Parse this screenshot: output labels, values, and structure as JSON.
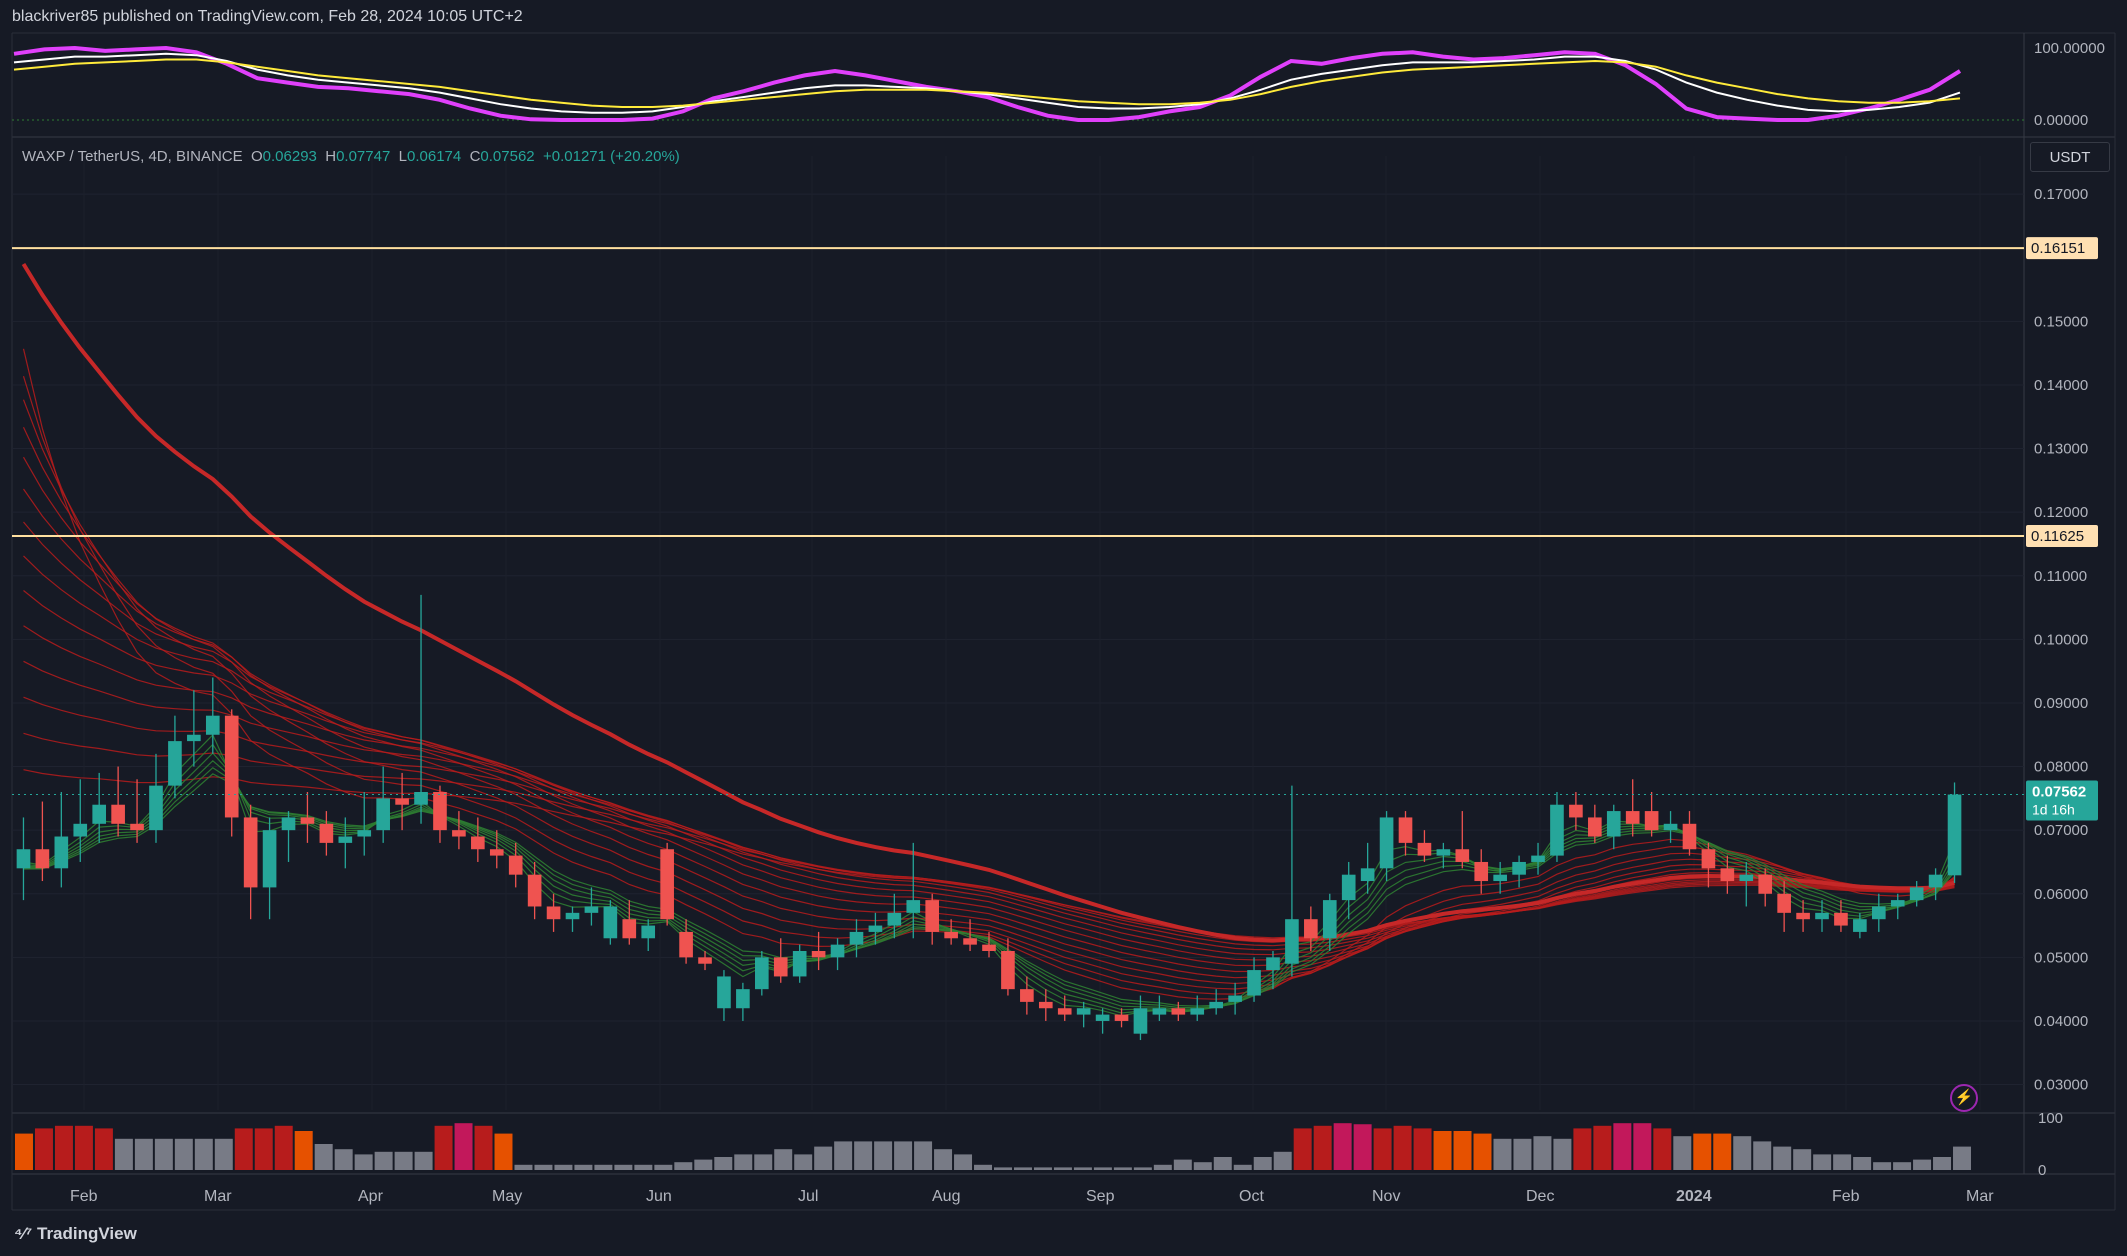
{
  "header": {
    "published": "blackriver85 published on TradingView.com, Feb 28, 2024 10:05 UTC+2"
  },
  "legend": {
    "symbol": "WAXP / TetherUS, 4D, BINANCE",
    "o_label": "O",
    "o": "0.06293",
    "h_label": "H",
    "h": "0.07747",
    "l_label": "L",
    "l": "0.06174",
    "c_label": "C",
    "c": "0.07562",
    "change": "+0.01271 (+20.20%)"
  },
  "currency_button": "USDT",
  "branding": "TradingView",
  "colors": {
    "background": "#161a25",
    "up_candle": "#26a69a",
    "down_candle": "#ef5350",
    "ribbon_red": "#b71c1c",
    "ribbon_green": "#2e7d32",
    "level_line": "#ffe0a0",
    "oscillator_magenta": "#e040fb"
  },
  "chart_data": [
    {
      "type": "line",
      "title": "",
      "panel": "oscillator",
      "y_ticks": [
        "100.00000",
        "0.00000"
      ],
      "ylim": [
        0,
        100
      ],
      "series": [
        {
          "color": "#e040fb",
          "values": [
            92,
            98,
            100,
            96,
            98,
            100,
            94,
            78,
            58,
            52,
            46,
            44,
            40,
            36,
            28,
            16,
            6,
            1,
            0,
            0,
            0,
            2,
            12,
            30,
            40,
            52,
            62,
            68,
            62,
            54,
            46,
            40,
            32,
            18,
            6,
            0,
            0,
            4,
            12,
            18,
            34,
            60,
            82,
            78,
            86,
            92,
            94,
            88,
            84,
            86,
            90,
            94,
            92,
            76,
            50,
            16,
            4,
            2,
            0,
            0,
            6,
            16,
            28,
            42,
            68
          ]
        },
        {
          "color": "#ffffff",
          "values": [
            80,
            84,
            88,
            88,
            90,
            92,
            90,
            82,
            70,
            62,
            56,
            52,
            48,
            44,
            38,
            30,
            22,
            16,
            12,
            10,
            10,
            12,
            18,
            26,
            32,
            38,
            44,
            48,
            48,
            46,
            44,
            40,
            36,
            30,
            24,
            18,
            16,
            16,
            18,
            22,
            30,
            42,
            56,
            64,
            70,
            76,
            80,
            80,
            80,
            82,
            84,
            88,
            88,
            82,
            70,
            52,
            38,
            28,
            20,
            14,
            12,
            14,
            18,
            24,
            38
          ]
        },
        {
          "color": "#ffeb3b",
          "values": [
            70,
            74,
            78,
            80,
            82,
            84,
            84,
            80,
            74,
            68,
            62,
            58,
            54,
            50,
            46,
            40,
            34,
            28,
            24,
            20,
            18,
            18,
            20,
            24,
            28,
            32,
            36,
            40,
            42,
            42,
            42,
            40,
            38,
            34,
            30,
            26,
            24,
            22,
            22,
            24,
            28,
            36,
            46,
            54,
            60,
            66,
            70,
            72,
            74,
            76,
            78,
            80,
            82,
            80,
            74,
            62,
            52,
            44,
            36,
            30,
            26,
            24,
            24,
            26,
            30
          ]
        }
      ]
    },
    {
      "type": "candlestick",
      "title": "",
      "panel": "price",
      "x_ticks": [
        "Feb",
        "Mar",
        "Apr",
        "May",
        "Jun",
        "Jul",
        "Aug",
        "Sep",
        "Oct",
        "Nov",
        "Dec",
        "2024",
        "Feb",
        "Mar"
      ],
      "y_ticks": [
        "0.17000",
        "0.15000",
        "0.14000",
        "0.13000",
        "0.12000",
        "0.11000",
        "0.10000",
        "0.09000",
        "0.08000",
        "0.07000",
        "0.06000",
        "0.05000",
        "0.04000",
        "0.03000"
      ],
      "ylim": [
        0.026,
        0.176
      ],
      "horizontal_levels": [
        {
          "label": "0.16151",
          "value": 0.16151
        },
        {
          "label": "0.11625",
          "value": 0.11625
        }
      ],
      "last_price_label": "0.07562",
      "countdown_label": "1d 16h",
      "candles": [
        {
          "o": 0.064,
          "h": 0.072,
          "l": 0.059,
          "c": 0.067
        },
        {
          "o": 0.067,
          "h": 0.0745,
          "l": 0.062,
          "c": 0.064
        },
        {
          "o": 0.064,
          "h": 0.076,
          "l": 0.061,
          "c": 0.069
        },
        {
          "o": 0.069,
          "h": 0.078,
          "l": 0.065,
          "c": 0.071
        },
        {
          "o": 0.071,
          "h": 0.079,
          "l": 0.068,
          "c": 0.074
        },
        {
          "o": 0.074,
          "h": 0.08,
          "l": 0.069,
          "c": 0.071
        },
        {
          "o": 0.071,
          "h": 0.078,
          "l": 0.068,
          "c": 0.07
        },
        {
          "o": 0.07,
          "h": 0.082,
          "l": 0.068,
          "c": 0.077
        },
        {
          "o": 0.077,
          "h": 0.088,
          "l": 0.075,
          "c": 0.084
        },
        {
          "o": 0.084,
          "h": 0.092,
          "l": 0.08,
          "c": 0.085
        },
        {
          "o": 0.085,
          "h": 0.094,
          "l": 0.082,
          "c": 0.088
        },
        {
          "o": 0.088,
          "h": 0.089,
          "l": 0.069,
          "c": 0.072
        },
        {
          "o": 0.072,
          "h": 0.074,
          "l": 0.056,
          "c": 0.061
        },
        {
          "o": 0.061,
          "h": 0.072,
          "l": 0.056,
          "c": 0.07
        },
        {
          "o": 0.07,
          "h": 0.073,
          "l": 0.065,
          "c": 0.072
        },
        {
          "o": 0.072,
          "h": 0.076,
          "l": 0.068,
          "c": 0.071
        },
        {
          "o": 0.071,
          "h": 0.073,
          "l": 0.066,
          "c": 0.068
        },
        {
          "o": 0.068,
          "h": 0.072,
          "l": 0.064,
          "c": 0.069
        },
        {
          "o": 0.069,
          "h": 0.076,
          "l": 0.066,
          "c": 0.07
        },
        {
          "o": 0.07,
          "h": 0.08,
          "l": 0.068,
          "c": 0.075
        },
        {
          "o": 0.075,
          "h": 0.079,
          "l": 0.07,
          "c": 0.074
        },
        {
          "o": 0.074,
          "h": 0.107,
          "l": 0.071,
          "c": 0.076
        },
        {
          "o": 0.076,
          "h": 0.077,
          "l": 0.068,
          "c": 0.07
        },
        {
          "o": 0.07,
          "h": 0.073,
          "l": 0.067,
          "c": 0.069
        },
        {
          "o": 0.069,
          "h": 0.072,
          "l": 0.065,
          "c": 0.067
        },
        {
          "o": 0.067,
          "h": 0.07,
          "l": 0.064,
          "c": 0.066
        },
        {
          "o": 0.066,
          "h": 0.068,
          "l": 0.061,
          "c": 0.063
        },
        {
          "o": 0.063,
          "h": 0.065,
          "l": 0.056,
          "c": 0.058
        },
        {
          "o": 0.058,
          "h": 0.06,
          "l": 0.054,
          "c": 0.056
        },
        {
          "o": 0.056,
          "h": 0.058,
          "l": 0.054,
          "c": 0.057
        },
        {
          "o": 0.057,
          "h": 0.061,
          "l": 0.055,
          "c": 0.058
        },
        {
          "o": 0.053,
          "h": 0.059,
          "l": 0.052,
          "c": 0.058
        },
        {
          "o": 0.056,
          "h": 0.059,
          "l": 0.052,
          "c": 0.053
        },
        {
          "o": 0.053,
          "h": 0.056,
          "l": 0.051,
          "c": 0.055
        },
        {
          "o": 0.067,
          "h": 0.068,
          "l": 0.055,
          "c": 0.056
        },
        {
          "o": 0.054,
          "h": 0.056,
          "l": 0.049,
          "c": 0.05
        },
        {
          "o": 0.05,
          "h": 0.051,
          "l": 0.048,
          "c": 0.049
        },
        {
          "o": 0.042,
          "h": 0.048,
          "l": 0.04,
          "c": 0.047
        },
        {
          "o": 0.042,
          "h": 0.046,
          "l": 0.04,
          "c": 0.045
        },
        {
          "o": 0.045,
          "h": 0.051,
          "l": 0.044,
          "c": 0.05
        },
        {
          "o": 0.05,
          "h": 0.053,
          "l": 0.046,
          "c": 0.047
        },
        {
          "o": 0.047,
          "h": 0.052,
          "l": 0.046,
          "c": 0.051
        },
        {
          "o": 0.051,
          "h": 0.054,
          "l": 0.048,
          "c": 0.05
        },
        {
          "o": 0.05,
          "h": 0.053,
          "l": 0.048,
          "c": 0.052
        },
        {
          "o": 0.052,
          "h": 0.056,
          "l": 0.05,
          "c": 0.054
        },
        {
          "o": 0.054,
          "h": 0.057,
          "l": 0.052,
          "c": 0.055
        },
        {
          "o": 0.055,
          "h": 0.06,
          "l": 0.053,
          "c": 0.057
        },
        {
          "o": 0.057,
          "h": 0.068,
          "l": 0.053,
          "c": 0.059
        },
        {
          "o": 0.059,
          "h": 0.06,
          "l": 0.052,
          "c": 0.054
        },
        {
          "o": 0.054,
          "h": 0.056,
          "l": 0.052,
          "c": 0.053
        },
        {
          "o": 0.053,
          "h": 0.056,
          "l": 0.051,
          "c": 0.052
        },
        {
          "o": 0.052,
          "h": 0.054,
          "l": 0.05,
          "c": 0.051
        },
        {
          "o": 0.051,
          "h": 0.053,
          "l": 0.044,
          "c": 0.045
        },
        {
          "o": 0.045,
          "h": 0.047,
          "l": 0.041,
          "c": 0.043
        },
        {
          "o": 0.043,
          "h": 0.045,
          "l": 0.04,
          "c": 0.042
        },
        {
          "o": 0.042,
          "h": 0.044,
          "l": 0.04,
          "c": 0.041
        },
        {
          "o": 0.041,
          "h": 0.043,
          "l": 0.039,
          "c": 0.042
        },
        {
          "o": 0.04,
          "h": 0.042,
          "l": 0.038,
          "c": 0.041
        },
        {
          "o": 0.041,
          "h": 0.042,
          "l": 0.039,
          "c": 0.04
        },
        {
          "o": 0.038,
          "h": 0.044,
          "l": 0.037,
          "c": 0.042
        },
        {
          "o": 0.041,
          "h": 0.044,
          "l": 0.04,
          "c": 0.042
        },
        {
          "o": 0.042,
          "h": 0.043,
          "l": 0.04,
          "c": 0.041
        },
        {
          "o": 0.041,
          "h": 0.044,
          "l": 0.04,
          "c": 0.042
        },
        {
          "o": 0.042,
          "h": 0.045,
          "l": 0.041,
          "c": 0.043
        },
        {
          "o": 0.043,
          "h": 0.046,
          "l": 0.041,
          "c": 0.044
        },
        {
          "o": 0.044,
          "h": 0.05,
          "l": 0.043,
          "c": 0.048
        },
        {
          "o": 0.048,
          "h": 0.051,
          "l": 0.045,
          "c": 0.05
        },
        {
          "o": 0.049,
          "h": 0.077,
          "l": 0.047,
          "c": 0.056
        },
        {
          "o": 0.056,
          "h": 0.058,
          "l": 0.051,
          "c": 0.053
        },
        {
          "o": 0.053,
          "h": 0.06,
          "l": 0.051,
          "c": 0.059
        },
        {
          "o": 0.059,
          "h": 0.065,
          "l": 0.056,
          "c": 0.063
        },
        {
          "o": 0.062,
          "h": 0.068,
          "l": 0.06,
          "c": 0.064
        },
        {
          "o": 0.064,
          "h": 0.073,
          "l": 0.062,
          "c": 0.072
        },
        {
          "o": 0.072,
          "h": 0.073,
          "l": 0.066,
          "c": 0.068
        },
        {
          "o": 0.068,
          "h": 0.07,
          "l": 0.065,
          "c": 0.066
        },
        {
          "o": 0.066,
          "h": 0.068,
          "l": 0.064,
          "c": 0.067
        },
        {
          "o": 0.067,
          "h": 0.073,
          "l": 0.064,
          "c": 0.065
        },
        {
          "o": 0.065,
          "h": 0.067,
          "l": 0.06,
          "c": 0.062
        },
        {
          "o": 0.062,
          "h": 0.065,
          "l": 0.06,
          "c": 0.063
        },
        {
          "o": 0.063,
          "h": 0.066,
          "l": 0.061,
          "c": 0.065
        },
        {
          "o": 0.065,
          "h": 0.068,
          "l": 0.063,
          "c": 0.066
        },
        {
          "o": 0.066,
          "h": 0.076,
          "l": 0.065,
          "c": 0.074
        },
        {
          "o": 0.074,
          "h": 0.076,
          "l": 0.07,
          "c": 0.072
        },
        {
          "o": 0.072,
          "h": 0.074,
          "l": 0.068,
          "c": 0.069
        },
        {
          "o": 0.069,
          "h": 0.074,
          "l": 0.067,
          "c": 0.073
        },
        {
          "o": 0.073,
          "h": 0.078,
          "l": 0.069,
          "c": 0.071
        },
        {
          "o": 0.073,
          "h": 0.076,
          "l": 0.069,
          "c": 0.07
        },
        {
          "o": 0.07,
          "h": 0.073,
          "l": 0.068,
          "c": 0.071
        },
        {
          "o": 0.071,
          "h": 0.073,
          "l": 0.066,
          "c": 0.067
        },
        {
          "o": 0.067,
          "h": 0.068,
          "l": 0.061,
          "c": 0.064
        },
        {
          "o": 0.064,
          "h": 0.066,
          "l": 0.06,
          "c": 0.062
        },
        {
          "o": 0.062,
          "h": 0.065,
          "l": 0.058,
          "c": 0.063
        },
        {
          "o": 0.063,
          "h": 0.064,
          "l": 0.058,
          "c": 0.06
        },
        {
          "o": 0.06,
          "h": 0.062,
          "l": 0.054,
          "c": 0.057
        },
        {
          "o": 0.057,
          "h": 0.059,
          "l": 0.054,
          "c": 0.056
        },
        {
          "o": 0.056,
          "h": 0.059,
          "l": 0.054,
          "c": 0.057
        },
        {
          "o": 0.057,
          "h": 0.059,
          "l": 0.054,
          "c": 0.055
        },
        {
          "o": 0.054,
          "h": 0.057,
          "l": 0.053,
          "c": 0.056
        },
        {
          "o": 0.056,
          "h": 0.06,
          "l": 0.054,
          "c": 0.058
        },
        {
          "o": 0.058,
          "h": 0.06,
          "l": 0.056,
          "c": 0.059
        },
        {
          "o": 0.059,
          "h": 0.062,
          "l": 0.058,
          "c": 0.061
        },
        {
          "o": 0.061,
          "h": 0.064,
          "l": 0.059,
          "c": 0.063
        },
        {
          "o": 0.0629,
          "h": 0.0775,
          "l": 0.0617,
          "c": 0.0756
        }
      ]
    },
    {
      "type": "bar",
      "title": "",
      "panel": "volume-oscillator",
      "y_ticks": [
        "100",
        "0"
      ],
      "ylim": [
        0,
        100
      ],
      "values": [
        70,
        80,
        85,
        85,
        80,
        60,
        60,
        60,
        60,
        60,
        60,
        80,
        80,
        85,
        75,
        50,
        40,
        30,
        35,
        35,
        35,
        85,
        90,
        85,
        70,
        10,
        10,
        10,
        10,
        10,
        10,
        10,
        10,
        15,
        20,
        25,
        30,
        30,
        40,
        30,
        45,
        55,
        55,
        55,
        55,
        55,
        40,
        30,
        10,
        5,
        5,
        5,
        5,
        5,
        5,
        5,
        5,
        10,
        20,
        15,
        25,
        10,
        25,
        35,
        80,
        85,
        90,
        88,
        80,
        85,
        80,
        75,
        75,
        70,
        60,
        60,
        65,
        60,
        80,
        85,
        90,
        90,
        80,
        65,
        70,
        70,
        65,
        55,
        45,
        40,
        30,
        30,
        25,
        15,
        15,
        20,
        25,
        45
      ]
    }
  ]
}
